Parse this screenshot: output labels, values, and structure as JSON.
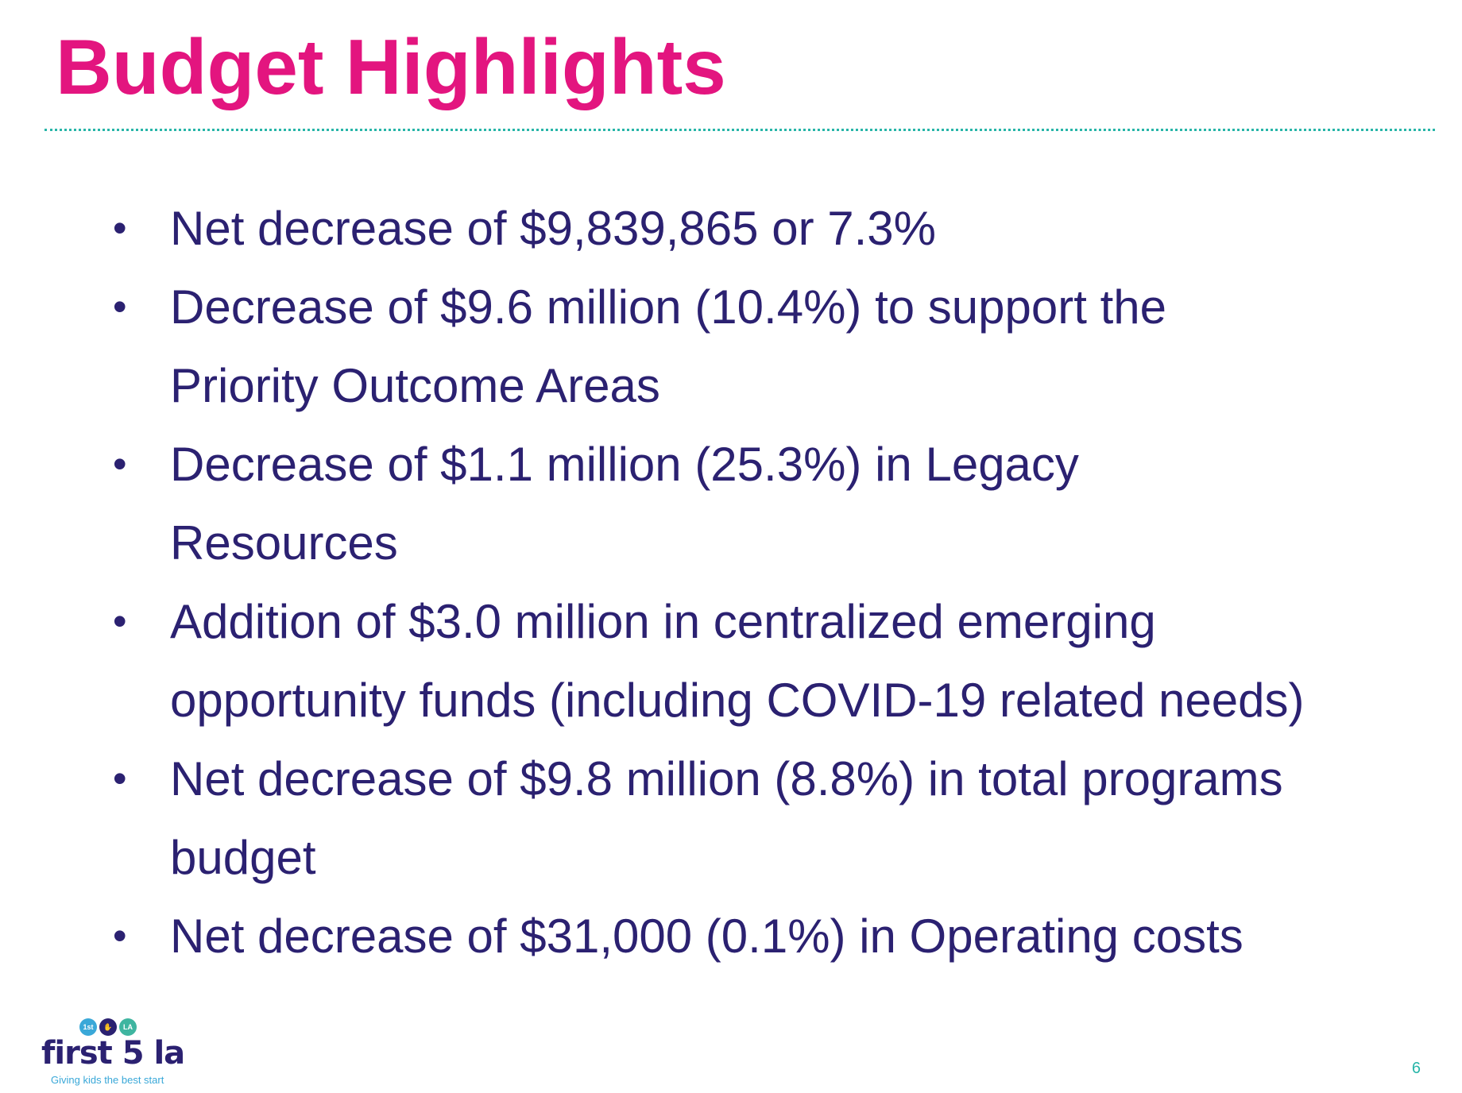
{
  "slide": {
    "title": "Budget Highlights",
    "bullets": [
      {
        "marker": "•",
        "lines": [
          "Net decrease of $9,839,865 or 7.3%"
        ]
      },
      {
        "marker": "•",
        "lines": [
          "Decrease of $9.6 million (10.4%) to support the",
          "Priority Outcome Areas"
        ]
      },
      {
        "marker": "•",
        "lines": [
          "Decrease of $1.1 million (25.3%) in Legacy",
          "Resources"
        ]
      },
      {
        "marker": "•",
        "lines": [
          "Addition of $3.0 million in centralized emerging",
          "opportunity funds (including COVID-19 related needs)"
        ]
      },
      {
        "marker": "•",
        "lines": [
          "Net decrease of $9.8 million (8.8%) in total programs",
          "budget"
        ]
      },
      {
        "marker": "•",
        "lines": [
          "Net decrease of $31,000 (0.1%) in Operating costs"
        ]
      }
    ],
    "page_number": "6"
  },
  "logo": {
    "badges": [
      "1st",
      "✋",
      "LA"
    ],
    "wordmark": "first 5 la",
    "tagline": "Giving kids the best start"
  },
  "colors": {
    "title": "#e3157f",
    "body_text": "#2b2171",
    "rule": "#27b5a8",
    "page_number": "#27b5a8",
    "logo_blue": "#3aa8d8",
    "logo_navy": "#2b2171",
    "logo_teal": "#3fb5a0"
  }
}
